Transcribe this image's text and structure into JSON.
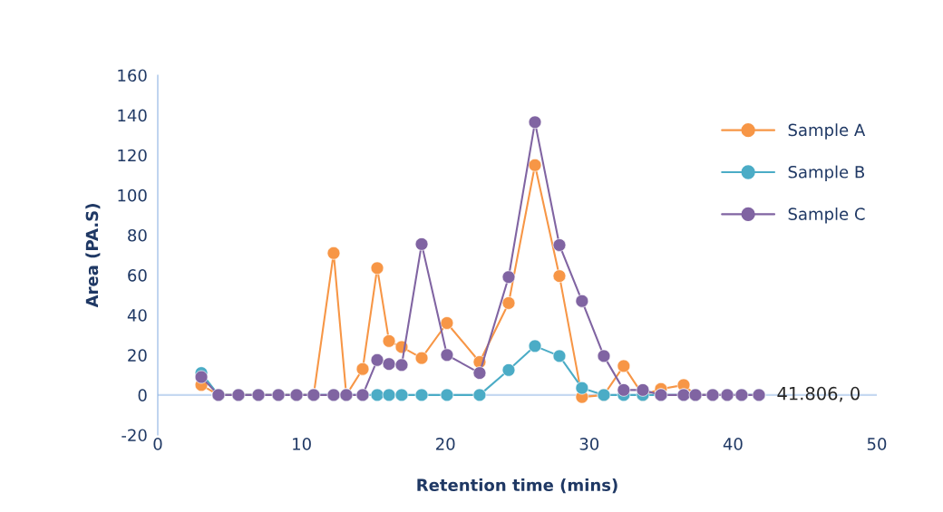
{
  "chart_data": {
    "type": "line",
    "xlabel": "Retention time (mins)",
    "ylabel": "Area (PA.S)",
    "xlim": [
      0,
      50
    ],
    "xticks": [
      0,
      10,
      20,
      30,
      40,
      50
    ],
    "ylim": [
      -20,
      160
    ],
    "yticks": [
      -20,
      0,
      20,
      40,
      60,
      80,
      100,
      120,
      140,
      160
    ],
    "grid": false,
    "legend": "right",
    "marker": "circle",
    "line_style": "solid",
    "x": [
      3.03,
      4.22,
      5.61,
      7.0,
      8.39,
      9.65,
      10.84,
      12.23,
      13.11,
      14.25,
      15.26,
      16.08,
      16.96,
      18.35,
      20.11,
      22.38,
      24.4,
      26.23,
      27.93,
      29.5,
      31.02,
      32.4,
      33.73,
      34.99,
      36.57,
      37.39,
      38.59,
      39.6,
      40.6,
      41.806
    ],
    "series": [
      {
        "name": "Sample A",
        "color": "#f79646",
        "values": [
          5,
          0,
          0,
          0,
          0,
          0,
          0,
          71,
          0,
          13,
          63.5,
          27,
          24,
          18.5,
          36,
          16.5,
          46,
          115,
          59.5,
          -1,
          0,
          14.5,
          0,
          3,
          5,
          0,
          0,
          0,
          null,
          null
        ]
      },
      {
        "name": "Sample B",
        "color": "#4bacc6",
        "values": [
          11,
          0,
          0,
          0,
          0,
          0,
          0,
          0,
          0,
          0,
          0,
          0,
          0,
          0,
          0,
          0,
          12.5,
          24.5,
          19.5,
          3.5,
          0,
          0,
          0,
          0,
          0,
          0,
          0,
          0,
          0,
          0
        ]
      },
      {
        "name": "Sample C",
        "color": "#8064a2",
        "values": [
          9,
          0,
          0,
          0,
          0,
          0,
          0,
          0,
          0,
          0,
          17.5,
          15.5,
          15,
          75.5,
          20,
          11,
          59,
          136.5,
          75,
          47,
          19.5,
          2.5,
          2.5,
          0,
          0,
          0,
          0,
          0,
          0,
          0
        ]
      }
    ],
    "ref_lines": [
      {
        "axis": "y",
        "value": 0,
        "color": "#c6d9f1"
      }
    ],
    "annotations": [
      {
        "text": "41.806, 0",
        "x": 41.806,
        "y": 0
      }
    ]
  }
}
